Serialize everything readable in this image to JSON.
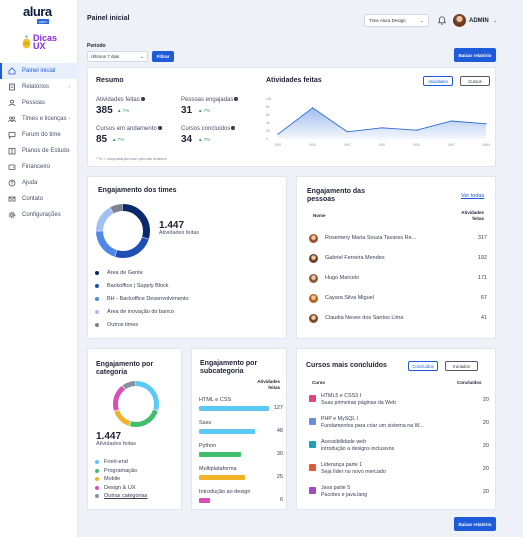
{
  "brand": {
    "logo": "alura",
    "logo_badge": "com",
    "dicas_line1": "Dicas",
    "dicas_line2": "UX"
  },
  "sidebar": {
    "items": [
      {
        "label": "Painel inicial",
        "icon": "home-icon",
        "active": true,
        "chevron": false
      },
      {
        "label": "Relatórios",
        "icon": "report-icon",
        "chevron": true
      },
      {
        "label": "Pessoas",
        "icon": "person-icon",
        "chevron": false
      },
      {
        "label": "Times e licenças",
        "icon": "team-icon",
        "chevron": true
      },
      {
        "label": "Forum do time",
        "icon": "forum-icon",
        "chevron": false
      },
      {
        "label": "Planos de Estudo",
        "icon": "book-icon",
        "chevron": true
      },
      {
        "label": "Financeiro",
        "icon": "wallet-icon",
        "chevron": false
      },
      {
        "label": "Ajuda",
        "icon": "help-icon",
        "chevron": false
      },
      {
        "label": "Contato",
        "icon": "mail-icon",
        "chevron": false
      },
      {
        "label": "Configurações",
        "icon": "gear-icon",
        "chevron": false
      }
    ]
  },
  "header": {
    "title": "Painel inicial",
    "team_select": "Time Alura Design",
    "user": "ADMIN"
  },
  "filter": {
    "label": "Período",
    "value": "Últimos 7 dias",
    "button": "Filtrar",
    "report_button": "Baixar relatório"
  },
  "resumo": {
    "title": "Resumo",
    "stats": [
      {
        "label": "Atividades feitas",
        "value": "385",
        "pct": "▲ 7%"
      },
      {
        "label": "Pessoas engajadas",
        "value": "31",
        "pct": "▲ 7%"
      },
      {
        "label": "Cursos em andamento",
        "value": "85",
        "pct": "▲ 7%"
      },
      {
        "label": "Cursos concluídos",
        "value": "34",
        "pct": "▲ 7%"
      }
    ],
    "note": "* % = comparação com período anterior"
  },
  "atividades": {
    "title": "Atividades feitas",
    "tab_active": "Atividades",
    "tab_other": "Cursos"
  },
  "chart_data": {
    "type": "area",
    "title": "Atividades feitas",
    "categories": [
      "00/0",
      "00/0",
      "00/0",
      "00/0",
      "00/0",
      "00/0",
      "00/00"
    ],
    "values": [
      12,
      78,
      18,
      28,
      22,
      45,
      38
    ],
    "yticks": [
      "100",
      "80",
      "60",
      "40",
      "20",
      "0"
    ],
    "ylim": [
      0,
      100
    ],
    "color": "#2b6cd8"
  },
  "engajamento_times": {
    "title": "Engajamento dos times",
    "total": "1.447",
    "total_label": "Atividades feitas",
    "legend": [
      {
        "label": "Área de Gente",
        "color": "#0a2a6e",
        "share": 0.3
      },
      {
        "label": "Backoffice | Supply Block",
        "color": "#1e4fb5",
        "share": 0.25
      },
      {
        "label": "BH - Backoffice Desenvolvimento",
        "color": "#4f86e8",
        "share": 0.2
      },
      {
        "label": "Área de inovação do banco",
        "color": "#a3c0f2",
        "share": 0.17
      },
      {
        "label": "Outros times",
        "color": "#7c8293",
        "share": 0.08
      }
    ]
  },
  "engajamento_pessoas": {
    "title_line1": "Engajamento das",
    "title_line2": "pessoas",
    "link": "Ver todas",
    "col_name": "Nome",
    "col_value_line1": "Atividades",
    "col_value_line2": "feitas",
    "rows": [
      {
        "name": "Rosemery Maria Souza Tavares Re...",
        "value": "317"
      },
      {
        "name": "Gabriel Ferreira Mendes",
        "value": "192"
      },
      {
        "name": "Hugo Marcelo",
        "value": "171"
      },
      {
        "name": "Cayara Silva Miguel",
        "value": "67"
      },
      {
        "name": "Claudia Neves dos Santos Lima",
        "value": "41"
      }
    ]
  },
  "engajamento_categoria": {
    "title_line1": "Engajamento por",
    "title_line2": "categoria",
    "total": "1.447",
    "total_label": "Atividades feitas",
    "legend": [
      {
        "label": "Front-end",
        "color": "#5bc8f5",
        "share": 0.3
      },
      {
        "label": "Programação",
        "color": "#3fbf6b",
        "share": 0.25
      },
      {
        "label": "Mobile",
        "color": "#f2b227",
        "share": 0.15
      },
      {
        "label": "Design & UX",
        "color": "#d94fb3",
        "share": 0.2
      },
      {
        "label": "Outras categorias",
        "color": "#8a8fa0",
        "share": 0.1
      }
    ]
  },
  "engajamento_subcategoria": {
    "title_line1": "Engajamento por",
    "title_line2": "subcategoria",
    "col_value_line1": "Atividades",
    "col_value_line2": "feitas",
    "rows": [
      {
        "name": "HTML e CSS",
        "value": "127",
        "color": "#5bc8f5",
        "fraction": 1.0
      },
      {
        "name": "Sass",
        "value": "48",
        "color": "#5bc8f5",
        "fraction": 0.8
      },
      {
        "name": "Python",
        "value": "30",
        "color": "#3fbf6b",
        "fraction": 0.6
      },
      {
        "name": "Multiplataforma",
        "value": "25",
        "color": "#f2b227",
        "fraction": 0.65
      },
      {
        "name": "Introdução ao design",
        "value": "6",
        "color": "#d94fb3",
        "fraction": 0.15
      }
    ]
  },
  "cursos": {
    "title": "Cursos mais concluídos",
    "tab_active": "Concluídos",
    "tab_other": "Iniciados",
    "col_name": "Curso",
    "col_value": "Concluídos",
    "rows": [
      {
        "name": "HTML5 e CSS3 I",
        "sub": "Suas primeiras páginas da Web",
        "value": "20",
        "color": "#e0457b"
      },
      {
        "name": "PHP e MySQL I",
        "sub": "Fundamentos para criar um sistema na W...",
        "value": "20",
        "color": "#6b8be0"
      },
      {
        "name": "Acessibilidade web",
        "sub": "introdução a designs inclusivos",
        "value": "20",
        "color": "#1aa0b8"
      },
      {
        "name": "Liderança parte 1",
        "sub": "Seja líder no novo mercado",
        "value": "20",
        "color": "#e05a3a"
      },
      {
        "name": "Java parte 5",
        "sub": "Pacotes e java.lang",
        "value": "20",
        "color": "#a04ac8"
      }
    ]
  }
}
